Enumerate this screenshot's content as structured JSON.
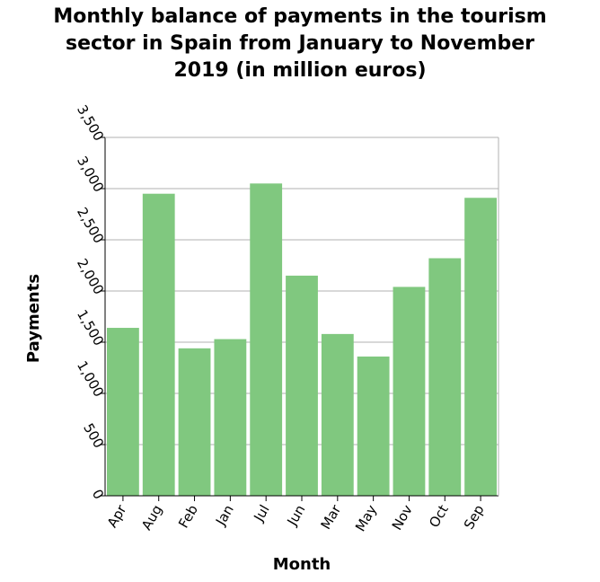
{
  "chart_data": {
    "type": "bar",
    "title_lines": [
      "Monthly balance of payments in the tourism",
      "sector in Spain from January to November",
      "2019 (in million euros)"
    ],
    "xlabel": "Month",
    "ylabel": "Payments",
    "categories": [
      "Apr",
      "Aug",
      "Feb",
      "Jan",
      "Jul",
      "Jun",
      "Mar",
      "May",
      "Nov",
      "Oct",
      "Sep"
    ],
    "values": [
      1640,
      2950,
      1440,
      1530,
      3050,
      2150,
      1580,
      1360,
      2040,
      2320,
      2910
    ],
    "ylim": [
      0,
      3500
    ],
    "yticks": [
      0,
      500,
      1000,
      1500,
      2000,
      2500,
      3000,
      3500
    ],
    "ytick_labels": [
      "0",
      "500",
      "1,000",
      "1,500",
      "2,000",
      "2,500",
      "3,000",
      "3,500"
    ],
    "grid": true,
    "bar_color": "#80c87f",
    "grid_color": "#b0b0b0"
  }
}
